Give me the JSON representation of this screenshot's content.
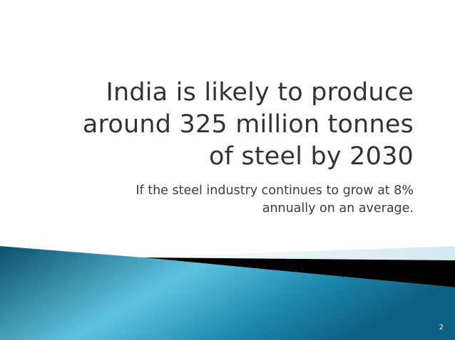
{
  "slide": {
    "title_lines": [
      "India is likely to produce",
      "around 325 million tonnes",
      "of steel by 2030"
    ],
    "subtitle_lines": [
      "If the steel industry continues to grow at 8%",
      "annually on an average."
    ],
    "page_number": "2"
  },
  "colors": {
    "band_dark": "#0a4f6d",
    "band_mid": "#1d89ad",
    "band_light": "#5fc3e0",
    "band_accent": "#000000",
    "band_pale": "#d4e8f0",
    "title_text": "#333333"
  }
}
